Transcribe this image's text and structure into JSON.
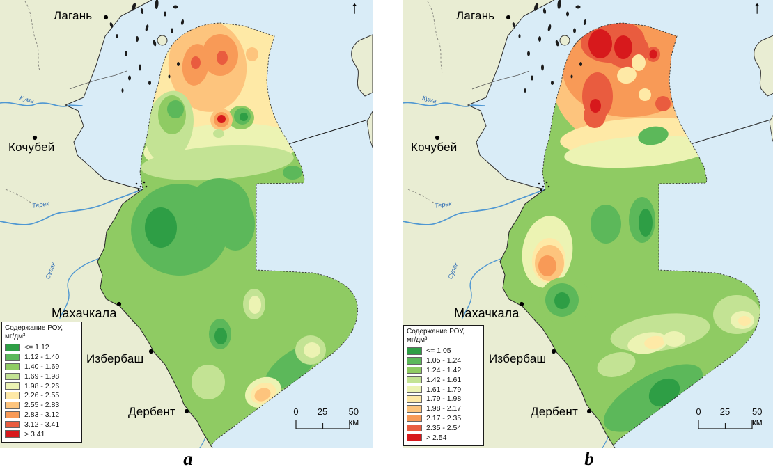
{
  "colors": {
    "ramp": [
      "#2e9e45",
      "#5cb85a",
      "#8fcb63",
      "#c3e394",
      "#ecf3b3",
      "#fee9a6",
      "#fdc47d",
      "#f89a57",
      "#e95c3f",
      "#d7191c"
    ],
    "land": "#e9edd3",
    "sea": "#d9ecf7",
    "river": "#4f97d2",
    "outline": "#2b2b2b"
  },
  "north_arrow": "↑",
  "panels": [
    {
      "caption": "a",
      "legend": {
        "title_line1": "Содержание РОУ,",
        "title_line2": "мг/дм³",
        "classes": [
          "<= 1.12",
          "1.12 - 1.40",
          "1.40 - 1.69",
          "1.69 - 1.98",
          "1.98 - 2.26",
          "2.26 - 2.55",
          "2.55 - 2.83",
          "2.83 - 3.12",
          "3.12 - 3.41",
          "> 3.41"
        ]
      },
      "cities": [
        {
          "name": "Лагань"
        },
        {
          "name": "Кочубей"
        },
        {
          "name": "Махачкала"
        },
        {
          "name": "Избербаш"
        },
        {
          "name": "Дербент"
        }
      ],
      "rivers": [
        {
          "name": "Кума"
        },
        {
          "name": "Терек"
        },
        {
          "name": "Сулак"
        }
      ],
      "scale": {
        "zero": "0",
        "mid": "25",
        "end": "50 км"
      }
    },
    {
      "caption": "b",
      "legend": {
        "title_line1": "Содержание РОУ,",
        "title_line2": "мг/дм³",
        "classes": [
          "<= 1.05",
          "1.05 - 1.24",
          "1.24 - 1.42",
          "1.42 - 1.61",
          "1.61 - 1.79",
          "1.79 - 1.98",
          "1.98 - 2.17",
          "2.17 - 2.35",
          "2.35 - 2.54",
          "> 2.54"
        ]
      },
      "cities": [
        {
          "name": "Лагань"
        },
        {
          "name": "Кочубей"
        },
        {
          "name": "Махачкала"
        },
        {
          "name": "Избербаш"
        },
        {
          "name": "Дербент"
        }
      ],
      "rivers": [
        {
          "name": "Кума"
        },
        {
          "name": "Терек"
        },
        {
          "name": "Сулак"
        }
      ],
      "scale": {
        "zero": "0",
        "mid": "25",
        "end": "50 км"
      }
    }
  ]
}
